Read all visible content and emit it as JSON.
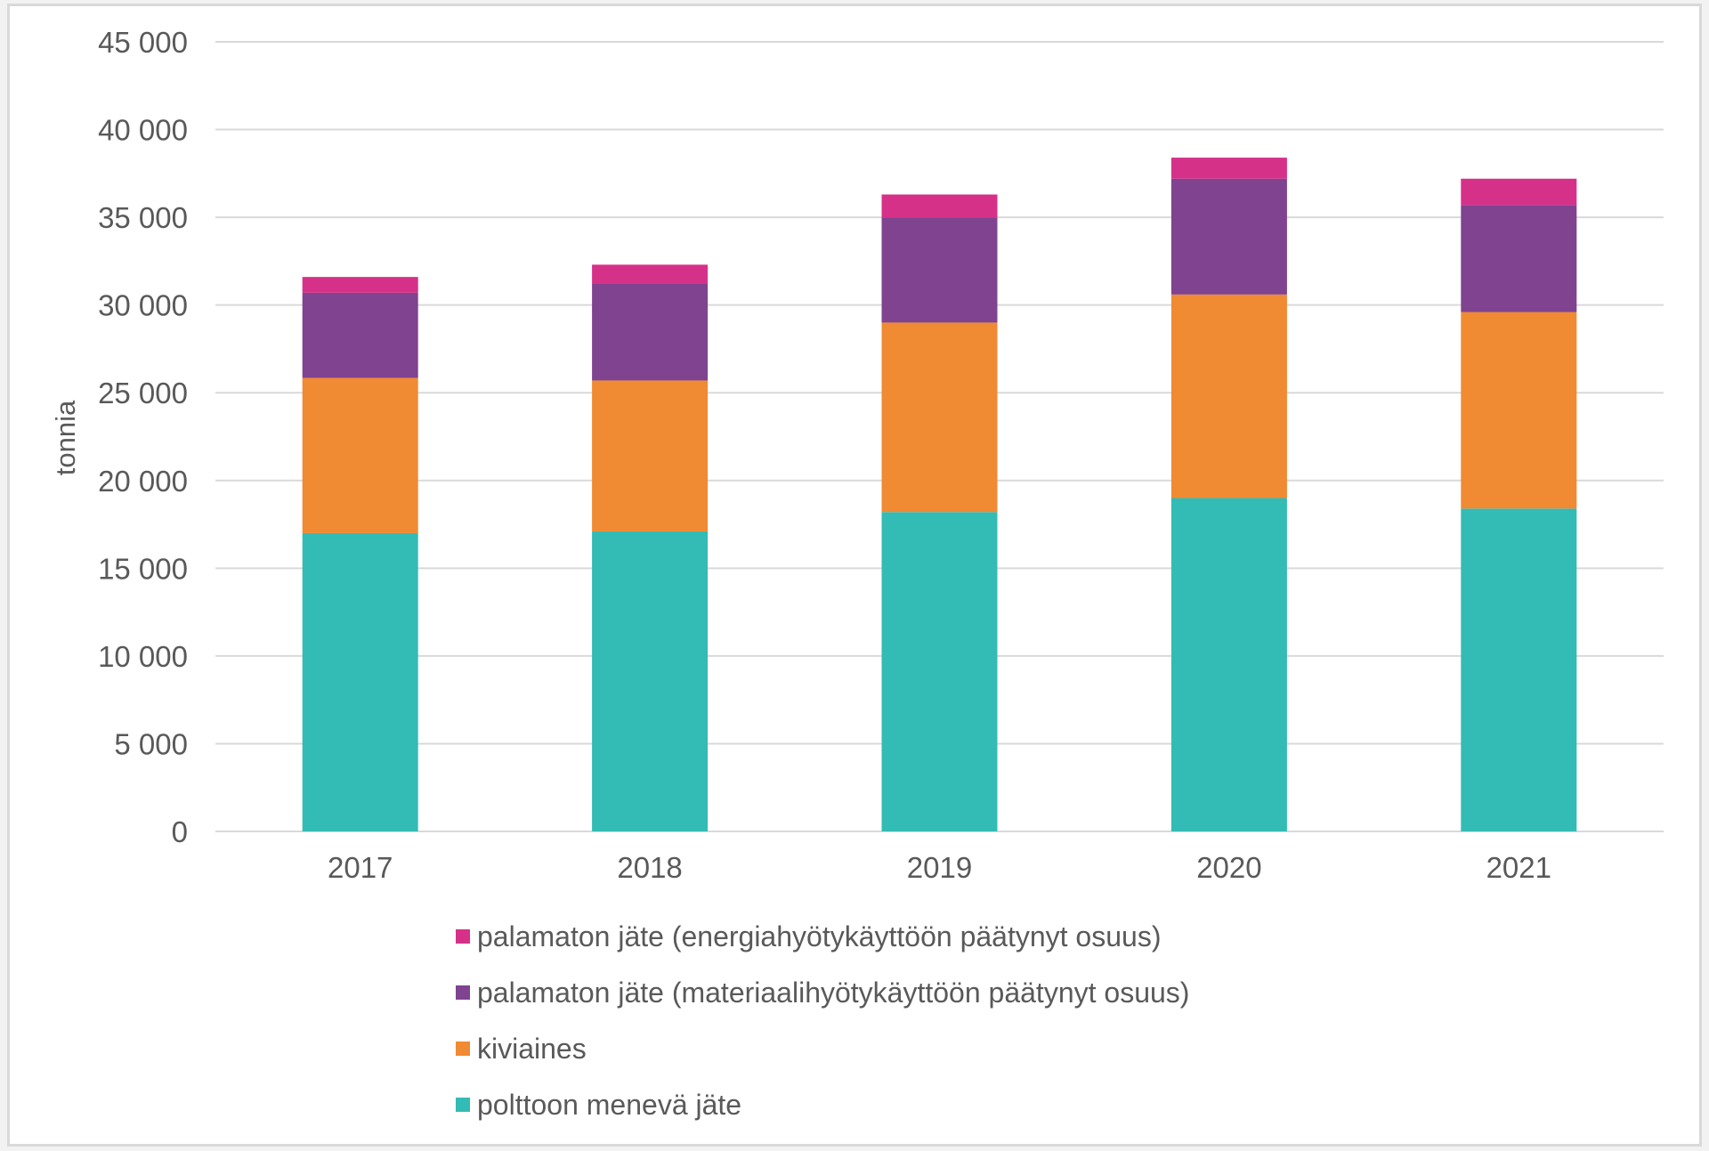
{
  "chart_data": {
    "type": "bar",
    "stacked": true,
    "title": "",
    "xlabel": "",
    "ylabel": "tonnia",
    "ylim": [
      0,
      45000
    ],
    "ytick_step": 5000,
    "ytick_labels": [
      "0",
      "5 000",
      "10 000",
      "15 000",
      "20 000",
      "25 000",
      "30 000",
      "35 000",
      "40 000",
      "45 000"
    ],
    "grid": true,
    "legend_position": "bottom",
    "categories": [
      "2017",
      "2018",
      "2019",
      "2020",
      "2021"
    ],
    "series": [
      {
        "name": "polttoon menevä jäte",
        "color": "#33BBB5",
        "values": [
          17000,
          17100,
          18200,
          19000,
          18400
        ]
      },
      {
        "name": "kiviaines",
        "color": "#F08A33",
        "values": [
          8850,
          8600,
          10800,
          11600,
          11200
        ]
      },
      {
        "name": "palamaton jäte (materiaalihyötykäyttöön päätynyt osuus)",
        "color": "#7F4390",
        "values": [
          4850,
          5500,
          6000,
          6600,
          6100
        ]
      },
      {
        "name": "palamaton jäte (energiahyötykäyttöön päätynyt osuus)",
        "color": "#D63189",
        "values": [
          900,
          1100,
          1300,
          1200,
          1500
        ]
      }
    ],
    "legend_order": [
      3,
      2,
      1,
      0
    ]
  }
}
